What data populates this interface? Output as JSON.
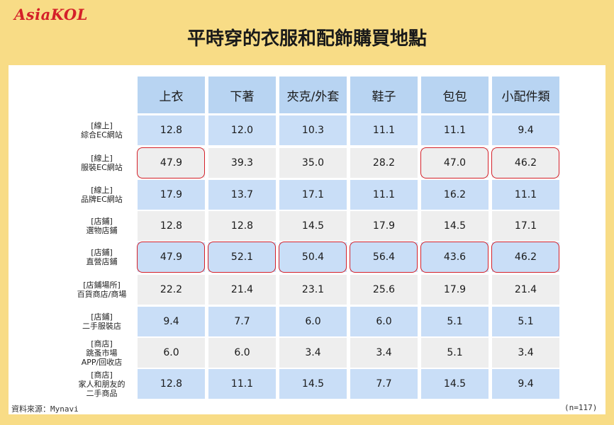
{
  "brand": {
    "logo_text": "AsiaKOL",
    "accent_color": "#d42029",
    "band_color": "#f8dc86"
  },
  "title": "平時穿的衣服和配飾購買地點",
  "source": "資料來源：Mynavi",
  "note": "(n=117)",
  "chart_data": {
    "type": "table",
    "title": "平時穿的衣服和配飾購買地點",
    "columns": [
      "上衣",
      "下著",
      "夾克/外套",
      "鞋子",
      "包包",
      "小配件類"
    ],
    "rows": [
      {
        "label": "[線上]\n綜合EC網站",
        "values": [
          "12.8",
          "12.0",
          "10.3",
          "11.1",
          "11.1",
          "9.4"
        ],
        "style": "blue",
        "highlight": [
          false,
          false,
          false,
          false,
          false,
          false
        ]
      },
      {
        "label": "[線上]\n服裝EC網站",
        "values": [
          "47.9",
          "39.3",
          "35.0",
          "28.2",
          "47.0",
          "46.2"
        ],
        "style": "gray",
        "highlight": [
          true,
          false,
          false,
          false,
          true,
          true
        ]
      },
      {
        "label": "[線上]\n品牌EC網站",
        "values": [
          "17.9",
          "13.7",
          "17.1",
          "11.1",
          "16.2",
          "11.1"
        ],
        "style": "blue",
        "highlight": [
          false,
          false,
          false,
          false,
          false,
          false
        ]
      },
      {
        "label": "[店鋪]\n選物店鋪",
        "values": [
          "12.8",
          "12.8",
          "14.5",
          "17.9",
          "14.5",
          "17.1"
        ],
        "style": "gray",
        "highlight": [
          false,
          false,
          false,
          false,
          false,
          false
        ]
      },
      {
        "label": "[店鋪]\n直營店鋪",
        "values": [
          "47.9",
          "52.1",
          "50.4",
          "56.4",
          "43.6",
          "46.2"
        ],
        "style": "blue",
        "highlight": [
          true,
          true,
          true,
          true,
          true,
          true
        ]
      },
      {
        "label": "[店鋪場所]\n百貨商店/商場",
        "values": [
          "22.2",
          "21.4",
          "23.1",
          "25.6",
          "17.9",
          "21.4"
        ],
        "style": "gray",
        "highlight": [
          false,
          false,
          false,
          false,
          false,
          false
        ]
      },
      {
        "label": "[店鋪]\n二手服裝店",
        "values": [
          "9.4",
          "7.7",
          "6.0",
          "6.0",
          "5.1",
          "5.1"
        ],
        "style": "blue",
        "highlight": [
          false,
          false,
          false,
          false,
          false,
          false
        ]
      },
      {
        "label": "[商店]\n跳蚤市場\nAPP/回收店",
        "values": [
          "6.0",
          "6.0",
          "3.4",
          "3.4",
          "5.1",
          "3.4"
        ],
        "style": "gray",
        "highlight": [
          false,
          false,
          false,
          false,
          false,
          false
        ]
      },
      {
        "label": "[商店]\n家人和朋友的\n二手商品",
        "values": [
          "12.8",
          "11.1",
          "14.5",
          "7.7",
          "14.5",
          "9.4"
        ],
        "style": "blue",
        "highlight": [
          false,
          false,
          false,
          false,
          false,
          false
        ]
      }
    ]
  }
}
